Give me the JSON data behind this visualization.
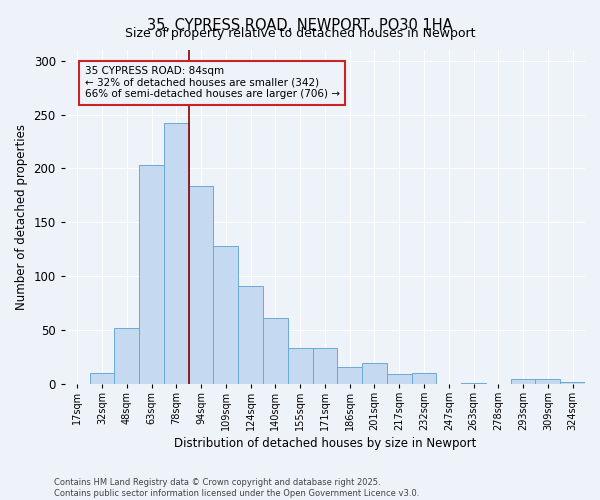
{
  "title": "35, CYPRESS ROAD, NEWPORT, PO30 1HA",
  "subtitle": "Size of property relative to detached houses in Newport",
  "xlabel": "Distribution of detached houses by size in Newport",
  "ylabel": "Number of detached properties",
  "bar_color": "#c5d9f0",
  "bar_edge_color": "#6aaad4",
  "categories": [
    "17sqm",
    "32sqm",
    "48sqm",
    "63sqm",
    "78sqm",
    "94sqm",
    "109sqm",
    "124sqm",
    "140sqm",
    "155sqm",
    "171sqm",
    "186sqm",
    "201sqm",
    "217sqm",
    "232sqm",
    "247sqm",
    "263sqm",
    "278sqm",
    "293sqm",
    "309sqm",
    "324sqm"
  ],
  "values": [
    0,
    10,
    52,
    203,
    242,
    184,
    128,
    91,
    61,
    33,
    33,
    16,
    19,
    9,
    10,
    0,
    1,
    0,
    4,
    4,
    2
  ],
  "ylim": [
    0,
    310
  ],
  "yticks": [
    0,
    50,
    100,
    150,
    200,
    250,
    300
  ],
  "vline_index": 4.5,
  "vline_color": "#8b0000",
  "annotation_text_line1": "35 CYPRESS ROAD: 84sqm",
  "annotation_text_line2": "← 32% of detached houses are smaller (342)",
  "annotation_text_line3": "66% of semi-detached houses are larger (706) →",
  "bg_color": "#eef2f9",
  "grid_color": "#ffffff",
  "footer_line1": "Contains HM Land Registry data © Crown copyright and database right 2025.",
  "footer_line2": "Contains public sector information licensed under the Open Government Licence v3.0."
}
